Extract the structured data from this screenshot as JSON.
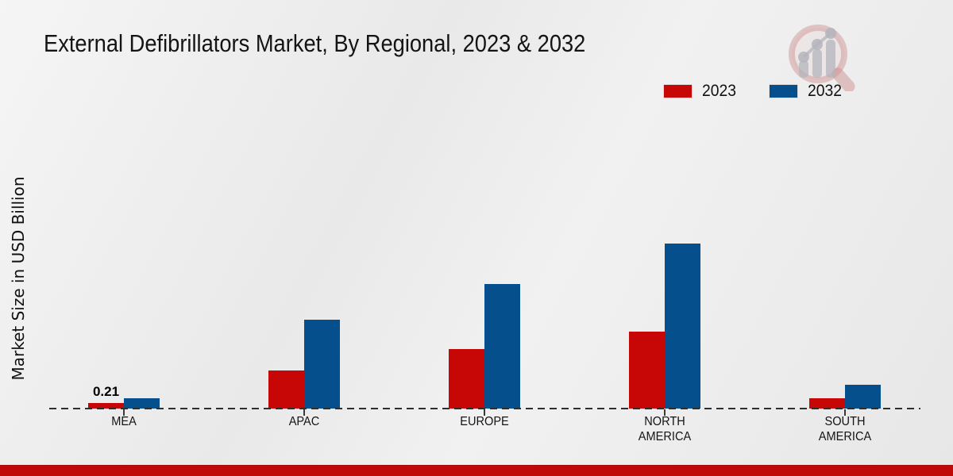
{
  "header": {
    "title": "External Defibrillators Market, By Regional, 2023 & 2032"
  },
  "legend": {
    "items": [
      {
        "label": "2023",
        "color": "#c70606"
      },
      {
        "label": "2032",
        "color": "#044f8c"
      }
    ]
  },
  "branding": {
    "logo_icon": "magnifier-growth-chart-logo",
    "logo_ring_color": "#d9aaaa",
    "logo_bar_color": "#c7c7cc"
  },
  "footer": {
    "bar_color": "#bf0909"
  },
  "chart_data": {
    "type": "bar",
    "title": "External Defibrillators Market, By Regional, 2023 & 2032",
    "xlabel": "",
    "ylabel": "Market Size in USD Billion",
    "categories": [
      "MEA",
      "APAC",
      "EUROPE",
      "NORTH AMERICA",
      "SOUTH AMERICA"
    ],
    "series": [
      {
        "name": "2023",
        "color": "#c70606",
        "values": [
          0.21,
          1.45,
          2.25,
          2.9,
          0.4
        ]
      },
      {
        "name": "2032",
        "color": "#044f8c",
        "values": [
          0.4,
          3.35,
          4.7,
          6.25,
          0.9
        ]
      }
    ],
    "value_labels": [
      {
        "series_index": 0,
        "category_index": 0,
        "text": "0.21"
      }
    ],
    "legend_position": "top-right",
    "grid": false,
    "baseline_style": "dashed",
    "ylim": [
      0,
      6.5
    ],
    "unit": "USD Billion"
  }
}
